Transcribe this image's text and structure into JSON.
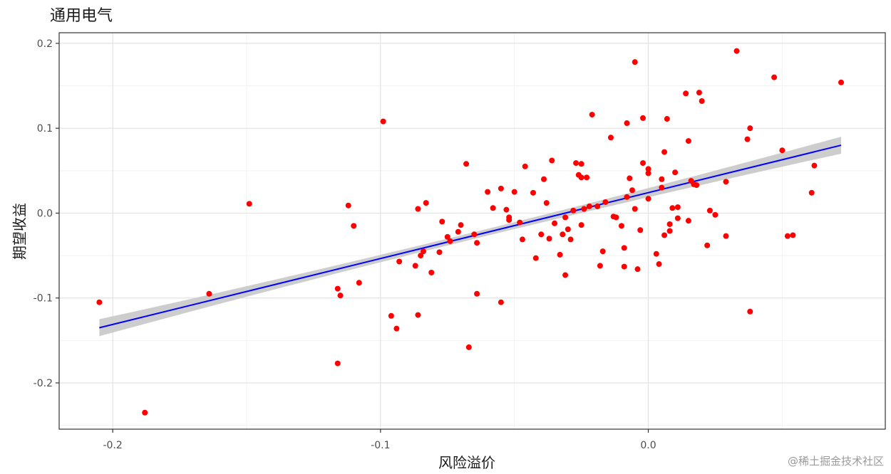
{
  "watermark": "@稀土掘金技术社区",
  "chart_data": {
    "type": "scatter",
    "title": "通用电气",
    "xlabel": "风险溢价",
    "ylabel": "期望收益",
    "xlim": [
      -0.22,
      0.0885
    ],
    "ylim": [
      -0.2545,
      0.2125
    ],
    "x_ticks": [
      -0.2,
      -0.1,
      0.0
    ],
    "x_tick_labels": [
      "-0.2",
      "-0.1",
      "0.0"
    ],
    "y_ticks": [
      0.2,
      0.1,
      0.0,
      -0.1,
      -0.2
    ],
    "y_tick_labels": [
      "0.2",
      "0.1",
      "0.0",
      "-0.1",
      "-0.2"
    ],
    "grid": true,
    "colors": {
      "points": "#ff0000",
      "line": "#0000ff",
      "band": "#c8c8c8"
    },
    "regression": {
      "x": [
        -0.205,
        0.072
      ],
      "y": [
        -0.135,
        0.08
      ],
      "band_halfwidth_ends": 0.01,
      "band_halfwidth_mid": 0.004
    },
    "points": [
      [
        -0.205,
        -0.105
      ],
      [
        -0.188,
        -0.235
      ],
      [
        -0.164,
        -0.095
      ],
      [
        -0.149,
        0.011
      ],
      [
        -0.116,
        -0.177
      ],
      [
        -0.116,
        -0.089
      ],
      [
        -0.115,
        -0.097
      ],
      [
        -0.112,
        0.009
      ],
      [
        -0.11,
        -0.015
      ],
      [
        -0.108,
        -0.082
      ],
      [
        -0.099,
        0.108
      ],
      [
        -0.096,
        -0.121
      ],
      [
        -0.094,
        -0.136
      ],
      [
        -0.093,
        -0.057
      ],
      [
        -0.087,
        -0.062
      ],
      [
        -0.086,
        0.005
      ],
      [
        -0.086,
        -0.12
      ],
      [
        -0.085,
        -0.05
      ],
      [
        -0.084,
        -0.045
      ],
      [
        -0.083,
        0.012
      ],
      [
        -0.081,
        -0.07
      ],
      [
        -0.078,
        -0.046
      ],
      [
        -0.077,
        -0.01
      ],
      [
        -0.075,
        -0.028
      ],
      [
        -0.074,
        -0.033
      ],
      [
        -0.071,
        -0.022
      ],
      [
        -0.07,
        -0.014
      ],
      [
        -0.068,
        0.058
      ],
      [
        -0.067,
        -0.158
      ],
      [
        -0.065,
        -0.025
      ],
      [
        -0.064,
        -0.035
      ],
      [
        -0.064,
        -0.095
      ],
      [
        -0.06,
        0.025
      ],
      [
        -0.058,
        0.006
      ],
      [
        -0.055,
        0.029
      ],
      [
        -0.055,
        -0.105
      ],
      [
        -0.053,
        0.004
      ],
      [
        -0.052,
        -0.008
      ],
      [
        -0.052,
        -0.005
      ],
      [
        -0.05,
        0.025
      ],
      [
        -0.048,
        -0.011
      ],
      [
        -0.047,
        -0.031
      ],
      [
        -0.046,
        0.055
      ],
      [
        -0.043,
        0.024
      ],
      [
        -0.042,
        -0.053
      ],
      [
        -0.04,
        -0.025
      ],
      [
        -0.039,
        0.04
      ],
      [
        -0.038,
        0.012
      ],
      [
        -0.037,
        -0.03
      ],
      [
        -0.036,
        0.062
      ],
      [
        -0.035,
        -0.012
      ],
      [
        -0.033,
        -0.049
      ],
      [
        -0.032,
        -0.025
      ],
      [
        -0.031,
        -0.005
      ],
      [
        -0.031,
        -0.073
      ],
      [
        -0.03,
        -0.019
      ],
      [
        -0.029,
        -0.031
      ],
      [
        -0.028,
        0.003
      ],
      [
        -0.027,
        0.059
      ],
      [
        -0.026,
        0.045
      ],
      [
        -0.025,
        -0.014
      ],
      [
        -0.025,
        0.058
      ],
      [
        -0.025,
        0.042
      ],
      [
        -0.024,
        0.005
      ],
      [
        -0.023,
        0.042
      ],
      [
        -0.022,
        0.008
      ],
      [
        -0.021,
        0.116
      ],
      [
        -0.019,
        0.008
      ],
      [
        -0.018,
        -0.062
      ],
      [
        -0.017,
        -0.045
      ],
      [
        -0.016,
        0.013
      ],
      [
        -0.014,
        0.089
      ],
      [
        -0.013,
        -0.004
      ],
      [
        -0.012,
        -0.005
      ],
      [
        -0.01,
        -0.015
      ],
      [
        -0.009,
        -0.041
      ],
      [
        -0.009,
        -0.063
      ],
      [
        -0.008,
        0.106
      ],
      [
        -0.008,
        0.019
      ],
      [
        -0.007,
        0.041
      ],
      [
        -0.006,
        0.027
      ],
      [
        -0.005,
        0.005
      ],
      [
        -0.005,
        0.178
      ],
      [
        -0.004,
        -0.066
      ],
      [
        -0.003,
        -0.02
      ],
      [
        -0.002,
        0.112
      ],
      [
        -0.002,
        0.059
      ],
      [
        0.0,
        0.052
      ],
      [
        0.0,
        0.047
      ],
      [
        0.0,
        0.017
      ],
      [
        0.003,
        -0.048
      ],
      [
        0.004,
        -0.06
      ],
      [
        0.005,
        0.04
      ],
      [
        0.005,
        0.03
      ],
      [
        0.006,
        -0.026
      ],
      [
        0.006,
        0.072
      ],
      [
        0.007,
        0.111
      ],
      [
        0.008,
        -0.021
      ],
      [
        0.008,
        -0.013
      ],
      [
        0.009,
        0.006
      ],
      [
        0.01,
        0.048
      ],
      [
        0.011,
        0.007
      ],
      [
        0.011,
        -0.006
      ],
      [
        0.014,
        0.141
      ],
      [
        0.015,
        -0.009
      ],
      [
        0.015,
        0.085
      ],
      [
        0.016,
        0.038
      ],
      [
        0.017,
        0.034
      ],
      [
        0.018,
        0.033
      ],
      [
        0.019,
        0.142
      ],
      [
        0.02,
        0.132
      ],
      [
        0.022,
        -0.038
      ],
      [
        0.023,
        0.003
      ],
      [
        0.025,
        -0.002
      ],
      [
        0.029,
        0.037
      ],
      [
        0.029,
        -0.027
      ],
      [
        0.033,
        0.191
      ],
      [
        0.037,
        0.087
      ],
      [
        0.038,
        0.1
      ],
      [
        0.038,
        -0.116
      ],
      [
        0.047,
        0.16
      ],
      [
        0.05,
        0.074
      ],
      [
        0.052,
        -0.027
      ],
      [
        0.054,
        -0.026
      ],
      [
        0.061,
        0.024
      ],
      [
        0.062,
        0.056
      ],
      [
        0.072,
        0.154
      ]
    ]
  }
}
